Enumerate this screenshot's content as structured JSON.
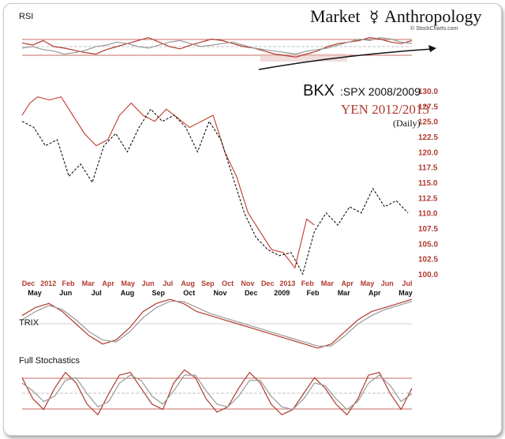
{
  "header": {
    "brand_part1": "Market",
    "brand_symbol": "☿",
    "brand_part2": "Anthropology",
    "credit": "© StockCharts.com"
  },
  "chart_data": [
    {
      "type": "line",
      "panel": "RSI",
      "title": "RSI",
      "series": [
        {
          "name": "",
          "color": "#b03a2e",
          "values": [
            55,
            52,
            58,
            50,
            48,
            45,
            42,
            40,
            46,
            50,
            54,
            58,
            62,
            56,
            50,
            47,
            52,
            56,
            60,
            58,
            54,
            50,
            48,
            44,
            40,
            38,
            36,
            40,
            44,
            50,
            54,
            56,
            58,
            62,
            60,
            56,
            54,
            58
          ]
        },
        {
          "name": "",
          "color": "#999999",
          "values": [
            48,
            50,
            46,
            44,
            40,
            42,
            45,
            50,
            52,
            56,
            54,
            50,
            48,
            52,
            56,
            58,
            54,
            50,
            52,
            54,
            56,
            52,
            48,
            46,
            44,
            42,
            40,
            44,
            46,
            48,
            52,
            56,
            60,
            58,
            62,
            60,
            56,
            54
          ]
        }
      ],
      "annotation": "rising trendline arrow"
    },
    {
      "type": "line",
      "panel": "price",
      "title_line1_a": "BKX",
      "title_line1_b": ":SPX 2008/2009",
      "title_line2": "YEN 2012/2013",
      "title_line3": "(Daily)",
      "y_ticks": [
        "130.0",
        "127.5",
        "125.0",
        "122.5",
        "120.0",
        "117.5",
        "115.0",
        "112.5",
        "110.0",
        "107.5",
        "105.0",
        "102.5",
        "100.0"
      ],
      "ylim": [
        100,
        130
      ],
      "x_ticks_top": [
        "Dec",
        "2012",
        "Feb",
        "Mar",
        "Apr",
        "May",
        "Jun",
        "Jul",
        "Aug",
        "Sep",
        "Oct",
        "Nov",
        "Dec",
        "2013",
        "Feb",
        "Mar",
        "Apr",
        "May",
        "Jun",
        "Jul"
      ],
      "x_ticks_bottom": [
        "May",
        "Jun",
        "Jul",
        "Aug",
        "Sep",
        "Oct",
        "Nov",
        "Dec",
        "2009",
        "Feb",
        "Mar",
        "Apr",
        "May"
      ],
      "series": [
        {
          "name": "",
          "color": "#c0392b",
          "x": [
            0,
            0.02,
            0.04,
            0.07,
            0.1,
            0.13,
            0.16,
            0.19,
            0.22,
            0.25,
            0.28,
            0.31,
            0.34,
            0.37,
            0.4,
            0.43,
            0.46,
            0.49,
            0.52,
            0.55,
            0.58,
            0.61,
            0.64,
            0.67,
            0.7,
            0.73,
            0.75
          ],
          "values": [
            126,
            128,
            129,
            128.5,
            129,
            126,
            123,
            121,
            122,
            126,
            128,
            126,
            125,
            127,
            125.5,
            124,
            125,
            126,
            120,
            116,
            110,
            107,
            104,
            103.5,
            101,
            109,
            108
          ]
        },
        {
          "name": "",
          "color": "#111111",
          "dash": true,
          "x": [
            0.0,
            0.03,
            0.06,
            0.09,
            0.12,
            0.15,
            0.18,
            0.21,
            0.24,
            0.27,
            0.3,
            0.33,
            0.36,
            0.39,
            0.42,
            0.45,
            0.48,
            0.51,
            0.54,
            0.57,
            0.6,
            0.63,
            0.66,
            0.69,
            0.72,
            0.75,
            0.78,
            0.81,
            0.84,
            0.87,
            0.9,
            0.93,
            0.96,
            0.99
          ],
          "values": [
            125,
            124,
            121,
            122,
            116,
            118,
            115,
            121,
            123,
            120,
            124,
            127,
            125,
            126,
            124,
            120,
            125,
            122,
            116,
            110,
            106,
            104,
            103,
            103.5,
            100,
            107,
            110,
            108,
            111,
            110,
            114,
            111,
            112,
            110
          ]
        }
      ]
    },
    {
      "type": "line",
      "panel": "TRIX",
      "title": "TRIX",
      "series": [
        {
          "name": "",
          "color": "#b03a2e",
          "values": [
            0.2,
            0.4,
            0.5,
            0.3,
            0.0,
            -0.3,
            -0.5,
            -0.4,
            -0.1,
            0.3,
            0.5,
            0.6,
            0.5,
            0.3,
            0.2,
            0.1,
            0.0,
            -0.1,
            -0.2,
            -0.3,
            -0.4,
            -0.5,
            -0.6,
            -0.5,
            -0.2,
            0.1,
            0.3,
            0.4,
            0.5,
            0.6
          ]
        },
        {
          "name": "",
          "color": "#999999",
          "values": [
            0.1,
            0.3,
            0.45,
            0.35,
            0.1,
            -0.2,
            -0.4,
            -0.45,
            -0.2,
            0.15,
            0.4,
            0.55,
            0.55,
            0.4,
            0.25,
            0.15,
            0.05,
            -0.05,
            -0.15,
            -0.25,
            -0.35,
            -0.45,
            -0.55,
            -0.55,
            -0.3,
            0.0,
            0.2,
            0.35,
            0.45,
            0.55
          ]
        }
      ]
    },
    {
      "type": "line",
      "panel": "Full Stochastics",
      "title": "Full Stochastics",
      "series": [
        {
          "name": "",
          "color": "#b03a2e",
          "values": [
            80,
            40,
            20,
            60,
            90,
            70,
            30,
            10,
            50,
            85,
            90,
            60,
            30,
            20,
            70,
            95,
            80,
            40,
            15,
            25,
            60,
            90,
            70,
            30,
            10,
            20,
            50,
            80,
            60,
            30,
            10,
            40,
            85,
            90,
            50,
            20,
            60
          ]
        },
        {
          "name": "",
          "color": "#999999",
          "values": [
            70,
            55,
            35,
            45,
            75,
            80,
            50,
            25,
            35,
            70,
            85,
            75,
            45,
            30,
            55,
            85,
            85,
            55,
            30,
            25,
            45,
            75,
            75,
            45,
            25,
            20,
            40,
            70,
            65,
            40,
            20,
            35,
            70,
            85,
            65,
            35,
            50
          ]
        }
      ]
    }
  ]
}
